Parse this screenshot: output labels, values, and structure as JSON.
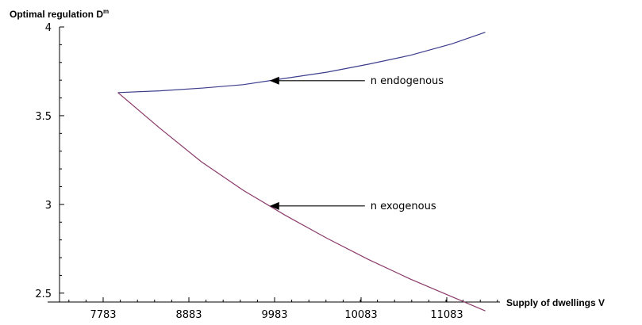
{
  "chart_data": {
    "type": "line",
    "ylabel": "Optimal regulation D",
    "ylabel_sup": "m",
    "xlabel": "Supply of dwellings V",
    "xlim": [
      7083,
      12283
    ],
    "ylim": [
      2.45,
      4.0
    ],
    "x_ticks": [
      7783,
      8883,
      9983,
      10083,
      11083
    ],
    "x_tick_labels": [
      "7783",
      "8883",
      "9983",
      "10083",
      "11083"
    ],
    "y_ticks": [
      2.5,
      3,
      3.5,
      4
    ],
    "y_tick_labels": [
      "2.5",
      "3",
      "3.5",
      "4"
    ],
    "series": [
      {
        "name": "n endogenous",
        "color": "#3c3c8c",
        "x": [
          7783,
          8283,
          8783,
          9283,
          9783,
          10283,
          10783,
          11283,
          11783,
          12183
        ],
        "y": [
          3.63,
          3.64,
          3.655,
          3.675,
          3.71,
          3.745,
          3.79,
          3.84,
          3.905,
          3.97
        ]
      },
      {
        "name": "n exogenous",
        "color": "#8a3a6a",
        "x": [
          7783,
          8283,
          8783,
          9283,
          9783,
          10283,
          10783,
          11283,
          11783,
          12183
        ],
        "y": [
          3.63,
          3.43,
          3.24,
          3.08,
          2.94,
          2.81,
          2.69,
          2.58,
          2.48,
          2.4
        ]
      }
    ],
    "annotations": [
      {
        "text": "n endogenous",
        "series": 0,
        "arrow_to_x": 9600
      },
      {
        "text": "n exogenous",
        "series": 1,
        "arrow_to_x": 9600
      }
    ]
  }
}
